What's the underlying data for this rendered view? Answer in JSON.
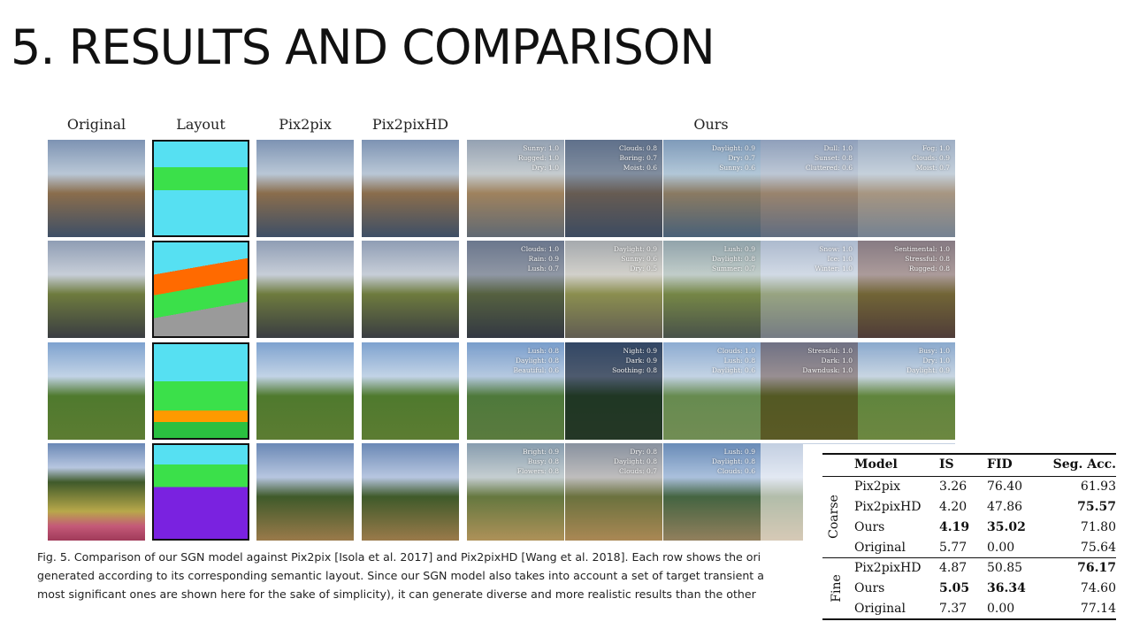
{
  "slide": {
    "title": "5. RESULTS AND COMPARISON"
  },
  "figure": {
    "column_headers": [
      "Original",
      "Layout",
      "Pix2pix",
      "Pix2pixHD",
      "Ours"
    ],
    "rows": [
      {
        "ours_tags": [
          [
            "Sunny: 1.0",
            "Rugged: 1.0",
            "Dry: 1.0"
          ],
          [
            "Clouds: 0.8",
            "Boring: 0.7",
            "Moist: 0.6"
          ],
          [
            "Daylight: 0.9",
            "Dry: 0.7",
            "Sunny: 0.6"
          ],
          [
            "Dull: 1.0",
            "Sunset: 0.8",
            "Cluttered: 0.6"
          ],
          [
            "Fog: 1.0",
            "Clouds: 0.9",
            "Moist: 0.7"
          ]
        ]
      },
      {
        "ours_tags": [
          [
            "Clouds: 1.0",
            "Rain: 0.9",
            "Lush: 0.7"
          ],
          [
            "Daylight: 0.9",
            "Sunny: 0.6",
            "Dry: 0.5"
          ],
          [
            "Lush: 0.9",
            "Daylight: 0.8",
            "Summer: 0.7"
          ],
          [
            "Snow: 1.0",
            "Ice: 1.0",
            "Winter: 1.0"
          ],
          [
            "Sentimental: 1.0",
            "Stressful: 0.8",
            "Rugged: 0.8"
          ]
        ]
      },
      {
        "ours_tags": [
          [
            "Lush: 0.8",
            "Daylight: 0.8",
            "Beautiful: 0.6"
          ],
          [
            "Night: 0.9",
            "Dark: 0.9",
            "Soothing: 0.8"
          ],
          [
            "Clouds: 1.0",
            "Lush: 0.8",
            "Daylight: 0.6"
          ],
          [
            "Stressful: 1.0",
            "Dark: 1.0",
            "Dawndusk: 1.0"
          ],
          [
            "Busy: 1.0",
            "Dry: 1.0",
            "Daylight: 0.9"
          ]
        ]
      },
      {
        "ours_tags": [
          [
            "Bright: 0.9",
            "Busy: 0.8",
            "Flowers: 0.8"
          ],
          [
            "Dry: 0.8",
            "Daylight: 0.8",
            "Clouds: 0.7"
          ],
          [
            "Lush: 0.9",
            "Daylight: 0.8",
            "Clouds: 0.6"
          ],
          [],
          []
        ]
      }
    ],
    "caption_lines": [
      "Fig. 5.  Comparison of our SGN model against Pix2pix [Isola et al. 2017] and Pix2pixHD [Wang et al. 2018]. Each row shows the ori",
      "generated according to its corresponding semantic layout. Since our SGN model also takes into account a set of target transient a",
      "most significant ones are shown here for the sake of simplicity), it can generate diverse and more realistic results than the other"
    ]
  },
  "table": {
    "headers": [
      "Model",
      "IS",
      "FID",
      "Seg. Acc."
    ],
    "groups": [
      {
        "label": "Coarse",
        "rows": [
          {
            "model": "Pix2pix",
            "is": "3.26",
            "fid": "76.40",
            "seg": "61.93"
          },
          {
            "model": "Pix2pixHD",
            "is": "4.20",
            "fid": "47.86",
            "seg": "75.57"
          },
          {
            "model": "Ours",
            "is": "4.19",
            "fid": "35.02",
            "seg": "71.80"
          },
          {
            "model": "Original",
            "is": "5.77",
            "fid": "0.00",
            "seg": "75.64"
          }
        ]
      },
      {
        "label": "Fine",
        "rows": [
          {
            "model": "Pix2pixHD",
            "is": "4.87",
            "fid": "50.85",
            "seg": "76.17"
          },
          {
            "model": "Ours",
            "is": "5.05",
            "fid": "36.34",
            "seg": "74.60"
          },
          {
            "model": "Original",
            "is": "7.37",
            "fid": "0.00",
            "seg": "77.14"
          }
        ]
      }
    ]
  }
}
